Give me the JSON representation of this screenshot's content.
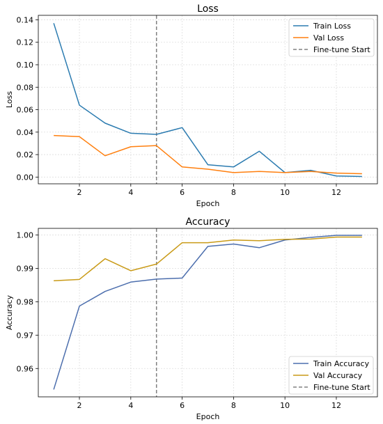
{
  "chart_data": [
    {
      "type": "line",
      "title": "Loss",
      "xlabel": "Epoch",
      "ylabel": "Loss",
      "x": [
        1,
        2,
        3,
        4,
        5,
        6,
        7,
        8,
        9,
        10,
        11,
        12,
        13
      ],
      "xlim": [
        0.4,
        13.6
      ],
      "ylim": [
        -0.006,
        0.144
      ],
      "xticks": [
        2,
        4,
        6,
        8,
        10,
        12
      ],
      "yticks": [
        0.0,
        0.02,
        0.04,
        0.06,
        0.08,
        0.1,
        0.12,
        0.14
      ],
      "ytick_labels": [
        "0.00",
        "0.02",
        "0.04",
        "0.06",
        "0.08",
        "0.10",
        "0.12",
        "0.14"
      ],
      "grid": true,
      "legend_position": "top-right",
      "vline": {
        "x": 5,
        "name": "Fine-tune Start",
        "color": "#808080"
      },
      "series": [
        {
          "name": "Train Loss",
          "color": "#2b7bb0",
          "values": [
            0.137,
            0.064,
            0.048,
            0.039,
            0.038,
            0.044,
            0.011,
            0.009,
            0.023,
            0.004,
            0.006,
            0.001,
            0.0005
          ]
        },
        {
          "name": "Val Loss",
          "color": "#ff7f0e",
          "values": [
            0.037,
            0.036,
            0.019,
            0.027,
            0.028,
            0.009,
            0.007,
            0.004,
            0.005,
            0.004,
            0.005,
            0.0035,
            0.003
          ]
        }
      ]
    },
    {
      "type": "line",
      "title": "Accuracy",
      "xlabel": "Epoch",
      "ylabel": "Accuracy",
      "x": [
        1,
        2,
        3,
        4,
        5,
        6,
        7,
        8,
        9,
        10,
        11,
        12,
        13
      ],
      "xlim": [
        0.4,
        13.6
      ],
      "ylim": [
        0.9515,
        1.002
      ],
      "xticks": [
        2,
        4,
        6,
        8,
        10,
        12
      ],
      "yticks": [
        0.96,
        0.97,
        0.98,
        0.99,
        1.0
      ],
      "ytick_labels": [
        "0.96",
        "0.97",
        "0.98",
        "0.99",
        "1.00"
      ],
      "grid": true,
      "legend_position": "bottom-right",
      "vline": {
        "x": 5,
        "name": "Fine-tune Start",
        "color": "#808080"
      },
      "series": [
        {
          "name": "Train Accuracy",
          "color": "#4c6ead",
          "values": [
            0.9537,
            0.9787,
            0.9831,
            0.9859,
            0.9868,
            0.9871,
            0.9966,
            0.9973,
            0.9962,
            0.9985,
            0.9993,
            0.9999,
            0.9999
          ]
        },
        {
          "name": "Val Accuracy",
          "color": "#c99a16",
          "values": [
            0.9863,
            0.9867,
            0.9929,
            0.9893,
            0.9913,
            0.9977,
            0.9977,
            0.9985,
            0.9983,
            0.9987,
            0.9988,
            0.9994,
            0.9994
          ]
        }
      ]
    }
  ]
}
